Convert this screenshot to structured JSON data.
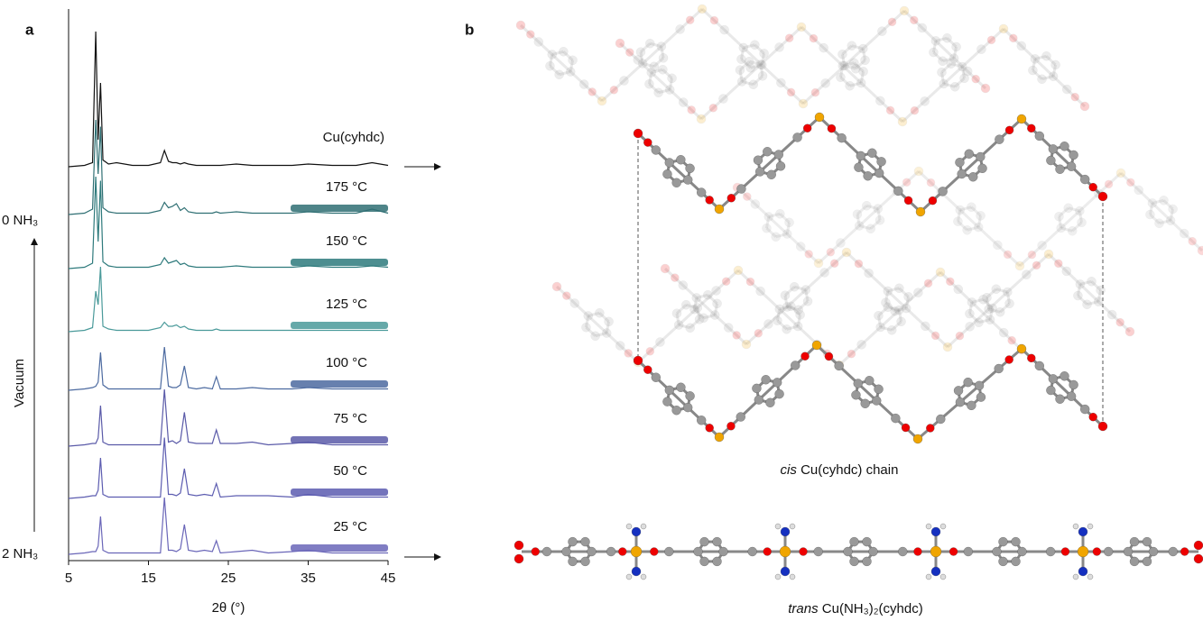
{
  "panel_labels": [
    "a",
    "b"
  ],
  "chart_data": {
    "type": "line",
    "xlabel": "2θ (°)",
    "xlim": [
      5,
      45
    ],
    "xticks": [
      5,
      15,
      25,
      35,
      45
    ],
    "x": [
      5,
      7,
      8,
      8.4,
      8.7,
      9,
      9.3,
      10,
      11,
      13,
      15,
      16.5,
      17,
      17.5,
      18,
      18.5,
      19,
      19.5,
      20,
      21,
      22,
      23,
      23.5,
      24,
      26,
      28,
      30,
      33,
      35,
      38,
      41,
      43,
      45
    ],
    "series": [
      {
        "name": "Cu(cyhdc)",
        "color": "#111111",
        "values": [
          0,
          1,
          3,
          100,
          20,
          62,
          5,
          2,
          3,
          1,
          1,
          3,
          12,
          4,
          3,
          3,
          2,
          3,
          2,
          1,
          1,
          1,
          1,
          1,
          2,
          1,
          1,
          1,
          2,
          1,
          1,
          3,
          1
        ]
      },
      {
        "name": "175 °C",
        "color": "#2f6f73",
        "values": [
          0,
          1,
          4,
          70,
          30,
          65,
          5,
          2,
          1,
          1,
          1,
          3,
          9,
          5,
          6,
          8,
          3,
          5,
          2,
          1,
          1,
          1,
          2,
          1,
          2,
          1,
          1,
          1,
          2,
          1,
          1,
          4,
          1
        ]
      },
      {
        "name": "150 °C",
        "color": "#2e7a7c",
        "values": [
          0,
          1,
          4,
          68,
          20,
          65,
          5,
          2,
          1,
          1,
          1,
          3,
          8,
          4,
          5,
          6,
          3,
          4,
          2,
          1,
          1,
          1,
          1,
          1,
          2,
          1,
          1,
          1,
          2,
          1,
          1,
          2,
          1
        ]
      },
      {
        "name": "125 °C",
        "color": "#4a9a9a",
        "values": [
          0,
          1,
          3,
          30,
          20,
          48,
          4,
          2,
          1,
          1,
          1,
          3,
          7,
          4,
          4,
          5,
          3,
          4,
          2,
          1,
          1,
          1,
          2,
          1,
          1,
          1,
          1,
          1,
          1,
          1,
          1,
          1,
          1
        ]
      },
      {
        "name": "100 °C",
        "color": "#4c6aa0",
        "values": [
          0,
          1,
          2,
          3,
          6,
          28,
          4,
          1,
          1,
          1,
          1,
          1,
          32,
          3,
          2,
          2,
          4,
          18,
          2,
          1,
          2,
          1,
          10,
          1,
          1,
          2,
          1,
          1,
          2,
          1,
          1,
          1,
          1
        ]
      },
      {
        "name": "75 °C",
        "color": "#5a5aa8",
        "values": [
          0,
          1,
          2,
          2,
          6,
          30,
          3,
          1,
          1,
          1,
          1,
          1,
          42,
          3,
          4,
          2,
          4,
          25,
          3,
          2,
          2,
          2,
          12,
          2,
          2,
          3,
          1,
          2,
          3,
          1,
          1,
          1,
          1
        ]
      },
      {
        "name": "50 °C",
        "color": "#5c5cb0",
        "values": [
          0,
          1,
          2,
          2,
          6,
          30,
          3,
          1,
          1,
          1,
          1,
          1,
          45,
          3,
          3,
          2,
          4,
          22,
          3,
          2,
          3,
          2,
          11,
          1,
          2,
          2,
          2,
          1,
          3,
          1,
          1,
          1,
          1
        ]
      },
      {
        "name": "25 °C",
        "color": "#6a66b8",
        "values": [
          0,
          1,
          2,
          2,
          6,
          28,
          3,
          1,
          1,
          1,
          1,
          1,
          42,
          3,
          3,
          2,
          4,
          22,
          3,
          2,
          3,
          2,
          10,
          1,
          2,
          3,
          1,
          2,
          3,
          1,
          1,
          1,
          1
        ]
      }
    ],
    "left_labels": {
      "top": "0 NH₃",
      "bottom": "2 NH₃",
      "arrow": "Vacuum"
    }
  },
  "structures": {
    "cis_caption": {
      "italic": "cis",
      "text": "Cu(cyhdc) chain"
    },
    "trans_caption": {
      "italic": "trans",
      "text": "Cu(NH₃)₂(cyhdc)"
    }
  }
}
